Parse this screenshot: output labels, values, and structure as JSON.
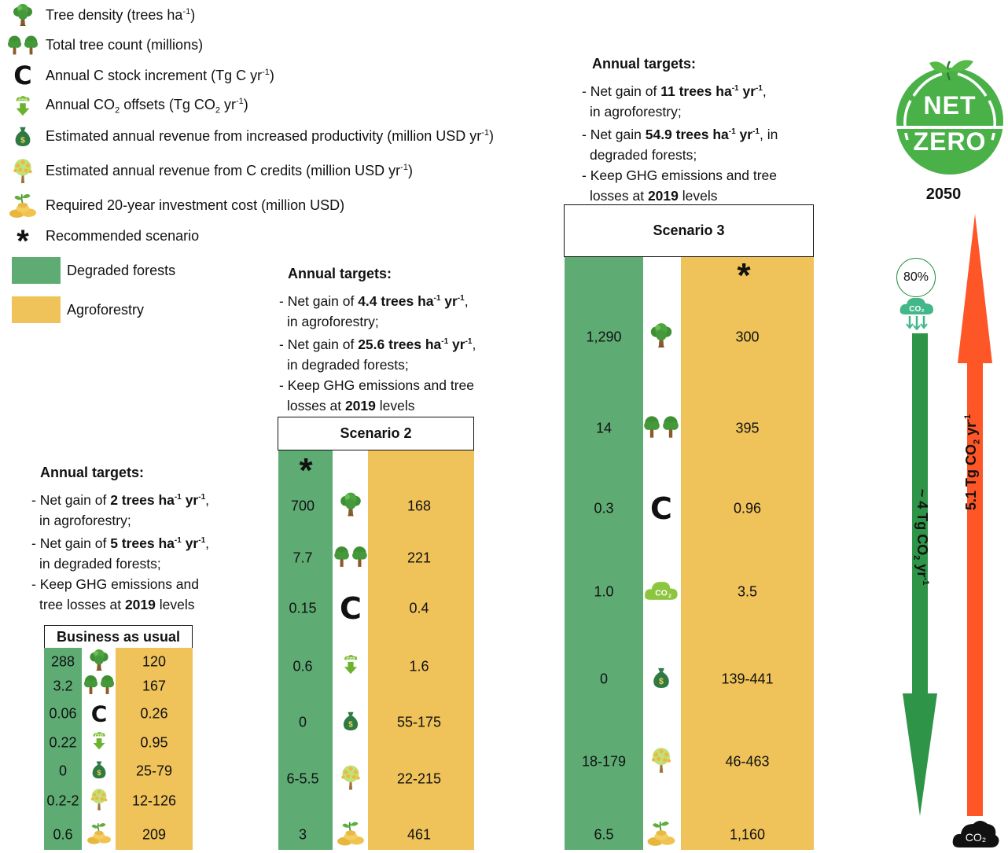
{
  "legend": {
    "tree_density": "Tree density (trees ha",
    "tree_density_sup": "-1",
    "tree_density_end": ")",
    "tree_count": "Total tree count (millions)",
    "c_stock": "Annual C stock increment (Tg C yr",
    "c_stock_sup": "-1",
    "c_stock_end": ")",
    "co2_a": "Annual CO",
    "co2_sub": "2",
    "co2_b": " offsets (Tg CO",
    "co2_sub2": "2",
    "co2_c": " yr",
    "co2_sup": "-1",
    "co2_end": ")",
    "revenue_prod": "Estimated annual revenue from increased productivity (million USD yr",
    "revenue_prod_sup": "-1",
    "revenue_prod_end": ")",
    "revenue_c": "Estimated annual revenue from C credits (million USD yr",
    "revenue_c_sup": "-1",
    "revenue_c_end": ")",
    "investment": "Required 20-year investment cost (million USD)",
    "recommended": "Recommended scenario",
    "degraded": "Degraded forests",
    "agroforestry": "Agroforestry",
    "c_glyph": "C",
    "star_glyph": "*"
  },
  "bau": {
    "targets_title": "Annual targets:",
    "t1a": "- Net gain of ",
    "t1b": "2 trees ha",
    "t1sup": "-1",
    "t1c": " yr",
    "t1sup2": "-1",
    "t1d": ",",
    "t1e": "in agroforestry;",
    "t2a": "- Net gain of ",
    "t2b": "5 trees ha",
    "t2sup": "-1",
    "t2c": " yr",
    "t2sup2": "-1",
    "t2d": ",",
    "t2e": "in degraded forests;",
    "t3a": "- Keep GHG emissions and",
    "t3b": "tree losses at ",
    "t3c": "2019",
    "t3d": " levels",
    "title": "Business as usual",
    "degraded": [
      "288",
      "3.2",
      "0.06",
      "0.22",
      "0",
      "0.2-2",
      "0.6"
    ],
    "agro": [
      "120",
      "167",
      "0.26",
      "0.95",
      "25-79",
      "12-126",
      "209"
    ]
  },
  "s2": {
    "targets_title": "Annual targets:",
    "t1a": "- Net gain of ",
    "t1b": "4.4 trees ha",
    "t1sup": "-1",
    "t1c": " yr",
    "t1sup2": "-1",
    "t1d": ",",
    "t1e": "in agroforestry;",
    "t2a": "- Net gain of ",
    "t2b": "25.6 trees ha",
    "t2sup": "-1",
    "t2c": " yr",
    "t2sup2": "-1",
    "t2d": ",",
    "t2e": "in degraded forests;",
    "t3a": "- Keep GHG emissions and tree",
    "t3b": "losses at ",
    "t3c": "2019",
    "t3d": " levels",
    "title": "Scenario 2",
    "degraded": [
      "700",
      "7.7",
      "0.15",
      "0.6",
      "0",
      "6-5.5",
      "3"
    ],
    "agro": [
      "168",
      "221",
      "0.4",
      "1.6",
      "55-175",
      "22-215",
      "461"
    ]
  },
  "s3": {
    "targets_title": "Annual targets:",
    "t1a": "- Net gain of ",
    "t1b": "11 trees ha",
    "t1sup": "-1",
    "t1c": " yr",
    "t1sup2": "-1",
    "t1d": ",",
    "t1e": "in agroforestry;",
    "t2a": "- Net gain ",
    "t2b": "54.9 trees ha",
    "t2sup": "-1",
    "t2c": " yr",
    "t2sup2": "-1",
    "t2d": ", in",
    "t2e": "degraded forests;",
    "t3a": "- Keep GHG emissions and tree",
    "t3b": "losses at ",
    "t3c": "2019",
    "t3d": " levels",
    "title": "Scenario 3",
    "degraded": [
      "1,290",
      "14",
      "0.3",
      "1.0",
      "0",
      "18-179",
      "6.5"
    ],
    "agro": [
      "300",
      "395",
      "0.96",
      "3.5",
      "139-441",
      "46-463",
      "1,160"
    ]
  },
  "netzero": {
    "net": "NET",
    "zero": "ZERO",
    "year": "2050",
    "percent": "80%",
    "co2_badge": "CO₂",
    "arrow_green": "~ 4 Tg CO",
    "arrow_green_sub": "2",
    "arrow_green_end": " yr",
    "arrow_green_sup": "-1",
    "arrow_red": "5.1 Tg CO",
    "arrow_red_sub": "2",
    "arrow_red_end": " yr",
    "arrow_red_sup": "-1",
    "cloud_label": "CO₂"
  },
  "colors": {
    "degraded": "#5eac74",
    "agroforestry": "#efc25a",
    "green_arrow": "#2e9448",
    "red_arrow": "#fe5627",
    "badge_green": "#4ab048"
  }
}
